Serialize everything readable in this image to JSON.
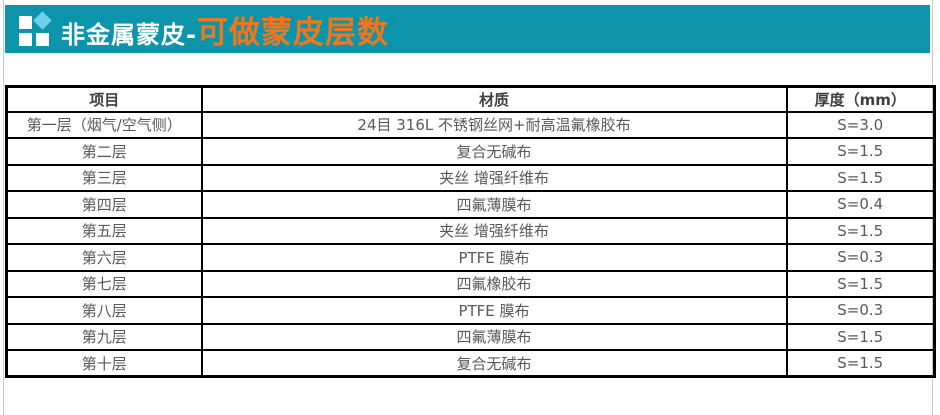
{
  "header": {
    "bar_color": "#0C95AA",
    "orange_color": "#F0771C",
    "diamond_color": "#6FCFEE",
    "title_white": "非金属蒙皮-",
    "title_orange": "可做蒙皮层数"
  },
  "table": {
    "columns": [
      "项目",
      "材质",
      "厚度（mm）"
    ],
    "rows": [
      {
        "item": "第一层（烟气/空气侧）",
        "material": "24目 316L 不锈钢丝网+耐高温氟橡胶布",
        "thickness": "S=3.0"
      },
      {
        "item": "第二层",
        "material": "复合无碱布",
        "thickness": "S=1.5"
      },
      {
        "item": "第三层",
        "material": "夹丝 增强纤维布",
        "thickness": "S=1.5"
      },
      {
        "item": "第四层",
        "material": "四氟薄膜布",
        "thickness": "S=0.4"
      },
      {
        "item": "第五层",
        "material": "夹丝 增强纤维布",
        "thickness": "S=1.5"
      },
      {
        "item": "第六层",
        "material": "PTFE 膜布",
        "thickness": "S=0.3"
      },
      {
        "item": "第七层",
        "material": "四氟橡胶布",
        "thickness": "S=1.5"
      },
      {
        "item": "第八层",
        "material": "PTFE 膜布",
        "thickness": "S=0.3"
      },
      {
        "item": "第九层",
        "material": "四氟薄膜布",
        "thickness": "S=1.5"
      },
      {
        "item": "第十层",
        "material": "复合无碱布",
        "thickness": "S=1.5"
      }
    ]
  }
}
